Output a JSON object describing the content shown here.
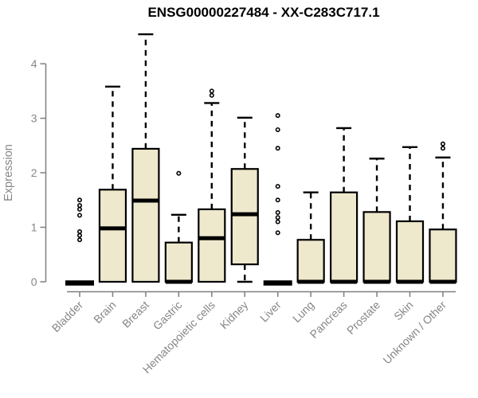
{
  "chart_data": {
    "type": "boxplot",
    "title": "ENSG00000227484 - XX-C283C717.1",
    "ylabel": "Expression",
    "xlabel": "",
    "ylim": [
      0,
      4.6
    ],
    "yticks": [
      0,
      1,
      2,
      3,
      4
    ],
    "grid": false,
    "legend": "none",
    "box_fill": "#EEE8CD",
    "box_stroke": "#000000",
    "axis_line_color": "#7f7f7f",
    "label_color": "#868686",
    "whisker_style": "dashed",
    "categories": [
      "Bladder",
      "Brain",
      "Breast",
      "Gastric",
      "Hematopoietic cells",
      "Kidney",
      "Liver",
      "Lung",
      "Pancreas",
      "Prostate",
      "Skin",
      "Unknown / Other"
    ],
    "boxes": [
      {
        "category": "Bladder",
        "low": 0,
        "q1": 0,
        "median": 0,
        "q3": 0,
        "high": 0,
        "outliers": [
          1.5,
          1.4,
          1.33,
          1.22,
          0.92,
          0.85,
          0.77
        ]
      },
      {
        "category": "Brain",
        "low": 0,
        "q1": 0,
        "median": 0.98,
        "q3": 1.69,
        "high": 3.58,
        "outliers": []
      },
      {
        "category": "Breast",
        "low": 0,
        "q1": 0,
        "median": 1.49,
        "q3": 2.44,
        "high": 4.54,
        "outliers": []
      },
      {
        "category": "Gastric",
        "low": 0,
        "q1": 0,
        "median": 0,
        "q3": 0.72,
        "high": 1.23,
        "outliers": [
          1.99
        ]
      },
      {
        "category": "Hematopoietic cells",
        "low": 0,
        "q1": 0,
        "median": 0.8,
        "q3": 1.33,
        "high": 3.28,
        "outliers": [
          3.5,
          3.42
        ]
      },
      {
        "category": "Kidney",
        "low": 0,
        "q1": 0.32,
        "median": 1.24,
        "q3": 2.07,
        "high": 3.01,
        "outliers": []
      },
      {
        "category": "Liver",
        "low": 0,
        "q1": 0,
        "median": 0,
        "q3": 0,
        "high": 0,
        "outliers": [
          3.05,
          2.79,
          2.45,
          1.75,
          1.5,
          1.27,
          1.18,
          1.1,
          0.9
        ]
      },
      {
        "category": "Lung",
        "low": 0,
        "q1": 0,
        "median": 0,
        "q3": 0.77,
        "high": 1.64,
        "outliers": []
      },
      {
        "category": "Pancreas",
        "low": 0,
        "q1": 0,
        "median": 0,
        "q3": 1.64,
        "high": 2.82,
        "outliers": []
      },
      {
        "category": "Prostate",
        "low": 0,
        "q1": 0,
        "median": 0,
        "q3": 1.28,
        "high": 2.26,
        "outliers": []
      },
      {
        "category": "Skin",
        "low": 0,
        "q1": 0,
        "median": 0,
        "q3": 1.11,
        "high": 2.47,
        "outliers": []
      },
      {
        "category": "Unknown / Other",
        "low": 0,
        "q1": 0,
        "median": 0,
        "q3": 0.96,
        "high": 2.28,
        "outliers": [
          2.53,
          2.45
        ]
      }
    ]
  }
}
